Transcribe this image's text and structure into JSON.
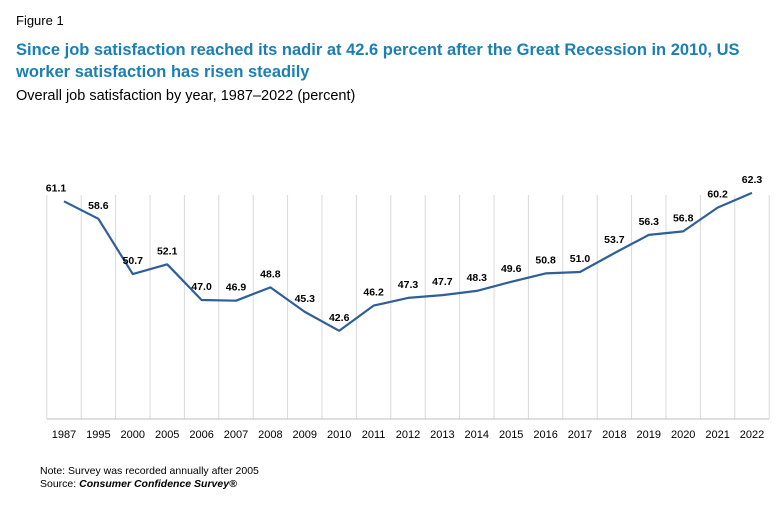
{
  "figure_label": "Figure 1",
  "title": "Since job satisfaction reached its nadir at 42.6 percent after the Great Recession in 2010, US worker satisfaction has risen steadily",
  "subtitle": "Overall job satisfaction by year, 1987–2022 (percent)",
  "note": "Note: Survey was recorded annually after 2005",
  "source_prefix": "Source: ",
  "source_name": "Consumer Confidence Survey®",
  "colors": {
    "line": "#2e5f99",
    "title": "#1a7fb5"
  },
  "chart_data": {
    "type": "line",
    "categories": [
      "1987",
      "1995",
      "2000",
      "2005",
      "2006",
      "2007",
      "2008",
      "2009",
      "2010",
      "2011",
      "2012",
      "2013",
      "2014",
      "2015",
      "2016",
      "2017",
      "2018",
      "2019",
      "2020",
      "2021",
      "2022"
    ],
    "series": [
      {
        "values": [
          61.1,
          58.6,
          50.7,
          52.1,
          47.0,
          46.9,
          48.8,
          45.3,
          42.6,
          46.2,
          47.3,
          47.7,
          48.3,
          49.6,
          50.8,
          51.0,
          53.7,
          56.3,
          56.8,
          60.2,
          62.3
        ]
      }
    ],
    "data_labels": [
      "61.1",
      "58.6",
      "50.7",
      "52.1",
      "47.0",
      "46.9",
      "48.8",
      "45.3",
      "42.6",
      "46.2",
      "47.3",
      "47.7",
      "48.3",
      "49.6",
      "50.8",
      "51.0",
      "53.7",
      "56.3",
      "56.8",
      "60.2",
      "62.3"
    ],
    "ylim": [
      30,
      70
    ],
    "grid": "vertical"
  }
}
